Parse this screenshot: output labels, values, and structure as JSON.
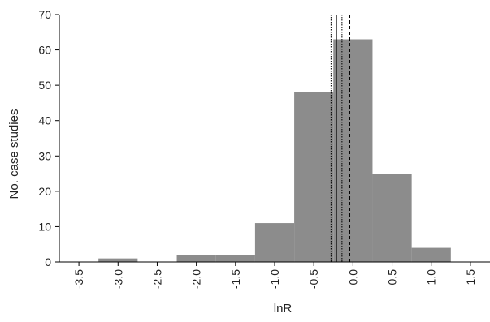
{
  "chart_data": {
    "type": "bar",
    "title": "",
    "xlabel": "lnR",
    "ylabel": "No. case studies",
    "xlim": [
      -3.75,
      1.75
    ],
    "ylim": [
      0,
      70
    ],
    "x_ticks": [
      -3.5,
      -3.0,
      -2.5,
      -2.0,
      -1.5,
      -1.0,
      -0.5,
      0.0,
      0.5,
      1.0,
      1.5
    ],
    "x_tick_labels": [
      "-3.5",
      "-3.0",
      "-2.5",
      "-2.0",
      "-1.5",
      "-1.0",
      "-0.5",
      "0.0",
      "0.5",
      "1.0",
      "1.5"
    ],
    "y_ticks": [
      0,
      10,
      20,
      30,
      40,
      50,
      60,
      70
    ],
    "y_tick_labels": [
      "0",
      "10",
      "20",
      "30",
      "40",
      "50",
      "60",
      "70"
    ],
    "bins": [
      {
        "x0": -3.25,
        "x1": -2.75,
        "value": 1
      },
      {
        "x0": -2.25,
        "x1": -1.75,
        "value": 2
      },
      {
        "x0": -1.75,
        "x1": -1.25,
        "value": 2
      },
      {
        "x0": -1.25,
        "x1": -0.75,
        "value": 11
      },
      {
        "x0": -0.75,
        "x1": -0.25,
        "value": 48
      },
      {
        "x0": -0.25,
        "x1": 0.25,
        "value": 63
      },
      {
        "x0": 0.25,
        "x1": 0.75,
        "value": 25
      },
      {
        "x0": 0.75,
        "x1": 1.25,
        "value": 4
      }
    ],
    "reference_lines": [
      {
        "x": -0.28,
        "style": "dotted"
      },
      {
        "x": -0.21,
        "style": "solid"
      },
      {
        "x": -0.14,
        "style": "dotted"
      },
      {
        "x": -0.04,
        "style": "dashed"
      }
    ],
    "grid": false,
    "colors": {
      "bar": "#8c8c8c",
      "axis": "#000000",
      "text": "#222222"
    }
  }
}
